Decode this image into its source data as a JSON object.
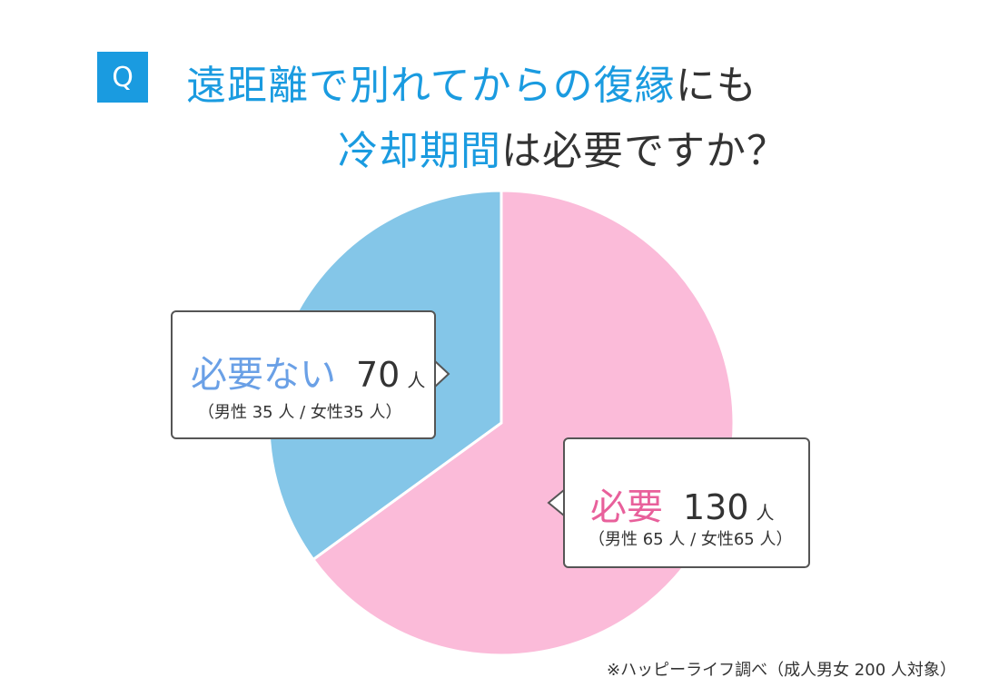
{
  "header": {
    "badge": "Q",
    "line1_accent": "遠距離で別れてからの復縁",
    "line1_rest": "にも",
    "line2_accent": "冷却期間",
    "line2_rest": "は必要ですか？"
  },
  "chart_data": {
    "type": "pie",
    "slices": [
      {
        "label": "必要",
        "value": 130,
        "unit": "人",
        "detail": "（男性 65 人 / 女性65 人）",
        "color": "#fbbbd9"
      },
      {
        "label": "必要ない",
        "value": 70,
        "unit": "人",
        "detail": "（男性 35 人 / 女性35 人）",
        "color": "#84c6e8"
      }
    ],
    "total": 200
  },
  "footnote": "※ハッピーライフ調べ（成人男女 200 人対象）"
}
